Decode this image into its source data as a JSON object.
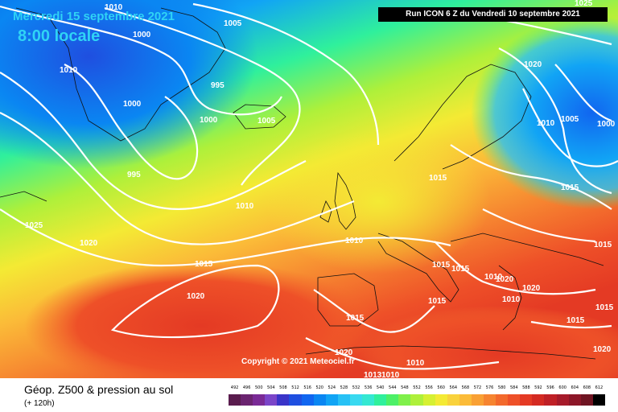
{
  "header": {
    "valid_date": "Mercredi 15 septembre 2021",
    "local_time": "8:00 locale",
    "run_info": "Run ICON 6 Z du Vendredi 10 septembre 2021"
  },
  "copyright": "Copyright © 2021 Meteociel.fr",
  "footer": {
    "field_title": "Géop. Z500 & pression au sol",
    "lead_time": "(+ 120h)"
  },
  "isobar_labels": [
    "1010",
    "1000",
    "1005",
    "1010",
    "995",
    "1000",
    "1000",
    "1005",
    "995",
    "1010",
    "1025",
    "1020",
    "1015",
    "1020",
    "1010",
    "1015",
    "1015",
    "1015",
    "1010",
    "1015",
    "1015",
    "1015",
    "1020",
    "1020",
    "1020",
    "1010",
    "1015",
    "1020",
    "1010",
    "1013",
    "1010",
    "1015",
    "1015",
    "1025",
    "1020",
    "1010",
    "1005",
    "1000"
  ],
  "scale": {
    "values": [
      "492",
      "496",
      "500",
      "504",
      "508",
      "512",
      "516",
      "520",
      "524",
      "528",
      "532",
      "536",
      "540",
      "544",
      "548",
      "552",
      "556",
      "560",
      "564",
      "568",
      "572",
      "576",
      "580",
      "584",
      "588",
      "592",
      "596",
      "600",
      "604",
      "608",
      "612"
    ],
    "colors": [
      "#5a1c4e",
      "#6b2470",
      "#7a2a96",
      "#7b45c8",
      "#3a34c8",
      "#1f4fe0",
      "#1166f0",
      "#0a86f2",
      "#11a4f5",
      "#27c1f5",
      "#38d9f0",
      "#34e8d2",
      "#2ff09c",
      "#4cf067",
      "#7ff04a",
      "#aef03a",
      "#d6f032",
      "#f4ea34",
      "#f9d23c",
      "#fbbb38",
      "#f9a034",
      "#f68430",
      "#f3692c",
      "#ee5028",
      "#e43a24",
      "#d42a22",
      "#bf2026",
      "#a61a2a",
      "#8c1628",
      "#6f1422",
      "#000000"
    ]
  }
}
